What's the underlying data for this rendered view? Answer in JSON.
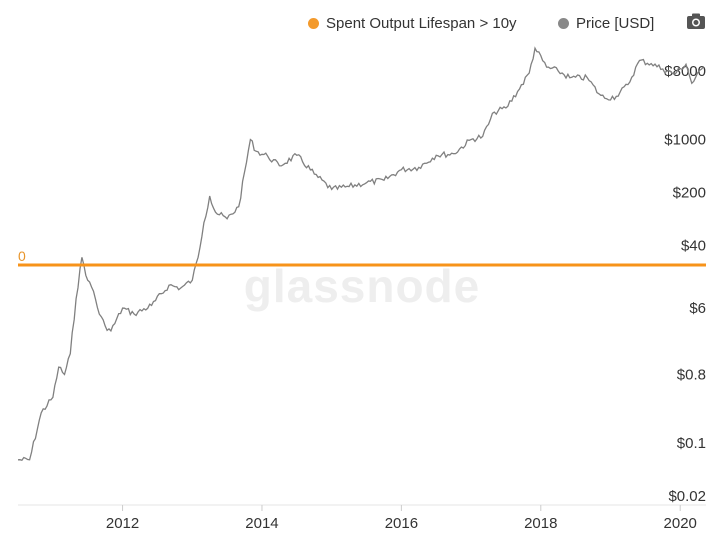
{
  "legend": {
    "series1_label": "Spent Output Lifespan > 10y",
    "series2_label": "Price [USD]"
  },
  "icons": {
    "camera": "camera-icon"
  },
  "colors": {
    "spent": "#f7931a",
    "price": "#808080",
    "spent_dot": "#f39a2c",
    "price_dot": "#888888"
  },
  "watermark": "glassnode",
  "chart_data": {
    "type": "line",
    "title": "",
    "xlabel": "",
    "ylabel": "",
    "x_ticks": [
      "2012",
      "2014",
      "2016",
      "2018",
      "2020"
    ],
    "y_right_scale": "log",
    "y_right_ticks": [
      "$8000",
      "$1000",
      "$200",
      "$40",
      "$6",
      "$0.8",
      "$0.1",
      "$0.02"
    ],
    "y_right_tick_values": [
      8000,
      1000,
      200,
      40,
      6,
      0.8,
      0.1,
      0.02
    ],
    "y_left_ticks": [
      "0"
    ],
    "x_range": [
      "2010-07",
      "2020-05"
    ],
    "legend_position": "top-right",
    "series": [
      {
        "name": "Spent Output Lifespan > 10y",
        "axis": "left",
        "x": [
          "2010-07",
          "2020-05"
        ],
        "values": [
          0,
          0
        ]
      },
      {
        "name": "Price [USD]",
        "axis": "right",
        "x": [
          "2010-07",
          "2010-09",
          "2010-11",
          "2011-01",
          "2011-02",
          "2011-03",
          "2011-04",
          "2011-05",
          "2011-06",
          "2011-07",
          "2011-08",
          "2011-09",
          "2011-10",
          "2011-11",
          "2012-01",
          "2012-03",
          "2012-06",
          "2012-09",
          "2012-11",
          "2013-01",
          "2013-02",
          "2013-03",
          "2013-04",
          "2013-05",
          "2013-07",
          "2013-09",
          "2013-11",
          "2013-12",
          "2014-02",
          "2014-04",
          "2014-07",
          "2014-10",
          "2015-01",
          "2015-04",
          "2015-07",
          "2015-10",
          "2016-01",
          "2016-04",
          "2016-07",
          "2016-10",
          "2017-01",
          "2017-03",
          "2017-05",
          "2017-07",
          "2017-09",
          "2017-11",
          "2017-12",
          "2018-02",
          "2018-04",
          "2018-06",
          "2018-09",
          "2018-11",
          "2018-12",
          "2019-02",
          "2019-04",
          "2019-06",
          "2019-08",
          "2019-10",
          "2019-12",
          "2020-02",
          "2020-03",
          "2020-05"
        ],
        "values": [
          0.06,
          0.06,
          0.25,
          0.4,
          1,
          0.8,
          1.5,
          8,
          28,
          14,
          10,
          5,
          3.5,
          3,
          6,
          5,
          6.5,
          12,
          11,
          14,
          28,
          80,
          180,
          110,
          90,
          130,
          1000,
          700,
          600,
          450,
          620,
          350,
          220,
          240,
          270,
          290,
          400,
          430,
          620,
          650,
          1000,
          1100,
          2300,
          2600,
          4300,
          7500,
          16000,
          9000,
          8000,
          6500,
          6500,
          4000,
          3500,
          3700,
          5300,
          11000,
          10000,
          8500,
          7300,
          9800,
          5500,
          9000
        ]
      }
    ]
  }
}
